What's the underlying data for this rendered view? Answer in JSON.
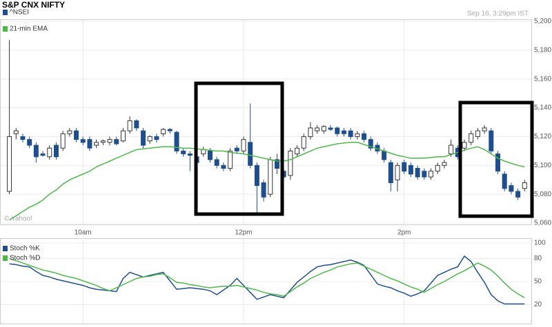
{
  "chart_data": [
    {
      "type": "candlestick",
      "title": "S&P CNX NIFTY",
      "timestamp": "Sep 16, 3:29pm IST",
      "source": "© Yahoo!",
      "xlim": [
        -1.4,
        78
      ],
      "xticks": [
        {
          "value": 11,
          "label": "10am"
        },
        {
          "value": 35,
          "label": "12pm"
        },
        {
          "value": 59,
          "label": "2pm"
        }
      ],
      "ylim": [
        5060,
        5200
      ],
      "yticks": [
        {
          "value": 5060,
          "label": "5,060"
        },
        {
          "value": 5080,
          "label": "5,080"
        },
        {
          "value": 5100,
          "label": "5,100"
        },
        {
          "value": 5120,
          "label": "5,120"
        },
        {
          "value": 5140,
          "label": "5,140"
        },
        {
          "value": 5160,
          "label": "5,160"
        },
        {
          "value": 5180,
          "label": "5,180"
        },
        {
          "value": 5200,
          "label": "5,200"
        }
      ],
      "grid": true,
      "series": [
        {
          "name": "^NSEI",
          "color": "#1f4e8c",
          "open": [
            5082,
            5122,
            5120,
            5118,
            5114,
            5108,
            5106,
            5114,
            5112,
            5122,
            5124,
            5118,
            5118,
            5114,
            5116,
            5116,
            5118,
            5117,
            5124,
            5131,
            5124,
            5117,
            5120,
            5122,
            5125,
            5123,
            5110,
            5108,
            5106,
            5108,
            5110,
            5104,
            5100,
            5098,
            5112,
            5110,
            5116,
            5100,
            5088,
            5080,
            5104,
            5096,
            5093,
            5108,
            5112,
            5120,
            5124,
            5124,
            5126,
            5126,
            5124,
            5124,
            5120,
            5122,
            5118,
            5114,
            5110,
            5102,
            5090,
            5102,
            5100,
            5098,
            5096,
            5092,
            5096,
            5100,
            5108,
            5112,
            5112,
            5116,
            5120,
            5124,
            5124,
            5108,
            5094,
            5086,
            5082,
            5084
          ],
          "high": [
            5187,
            5126,
            5122,
            5120,
            5116,
            5110,
            5114,
            5116,
            5124,
            5126,
            5126,
            5120,
            5120,
            5118,
            5118,
            5120,
            5120,
            5126,
            5134,
            5132,
            5126,
            5121,
            5122,
            5126,
            5126,
            5124,
            5112,
            5110,
            5108,
            5113,
            5112,
            5106,
            5102,
            5112,
            5114,
            5120,
            5143,
            5102,
            5090,
            5106,
            5108,
            5098,
            5112,
            5114,
            5122,
            5130,
            5128,
            5128,
            5128,
            5127,
            5126,
            5126,
            5124,
            5124,
            5120,
            5116,
            5112,
            5104,
            5102,
            5104,
            5102,
            5100,
            5098,
            5098,
            5102,
            5104,
            5118,
            5114,
            5118,
            5124,
            5126,
            5128,
            5126,
            5110,
            5096,
            5088,
            5084,
            5090
          ],
          "low": [
            5080,
            5118,
            5116,
            5112,
            5102,
            5106,
            5104,
            5104,
            5110,
            5120,
            5116,
            5114,
            5110,
            5112,
            5114,
            5114,
            5114,
            5116,
            5122,
            5124,
            5112,
            5115,
            5116,
            5120,
            5122,
            5108,
            5106,
            5096,
            5100,
            5106,
            5102,
            5098,
            5096,
            5096,
            5108,
            5108,
            5098,
            5067,
            5075,
            5078,
            5094,
            5090,
            5090,
            5106,
            5110,
            5118,
            5122,
            5122,
            5124,
            5120,
            5120,
            5118,
            5118,
            5116,
            5110,
            5108,
            5102,
            5082,
            5082,
            5094,
            5092,
            5090,
            5090,
            5090,
            5094,
            5098,
            5106,
            5104,
            5110,
            5114,
            5118,
            5122,
            5108,
            5094,
            5082,
            5080,
            5076,
            5082
          ],
          "close": [
            5120,
            5124,
            5118,
            5114,
            5106,
            5107,
            5112,
            5106,
            5122,
            5124,
            5118,
            5116,
            5112,
            5116,
            5117,
            5118,
            5115,
            5124,
            5131,
            5126,
            5114,
            5120,
            5118,
            5125,
            5124,
            5110,
            5108,
            5107,
            5102,
            5111,
            5104,
            5100,
            5098,
            5110,
            5110,
            5118,
            5100,
            5086,
            5078,
            5104,
            5098,
            5092,
            5110,
            5112,
            5120,
            5126,
            5126,
            5127,
            5125,
            5122,
            5122,
            5120,
            5122,
            5118,
            5112,
            5110,
            5104,
            5088,
            5100,
            5096,
            5094,
            5092,
            5092,
            5096,
            5100,
            5102,
            5114,
            5106,
            5116,
            5122,
            5124,
            5126,
            5110,
            5096,
            5084,
            5082,
            5078,
            5088
          ]
        },
        {
          "name": "21-min EMA",
          "type": "line",
          "color": "#4cb848",
          "values": [
            5062,
            5065,
            5068,
            5071,
            5073,
            5076,
            5080,
            5083,
            5087,
            5090,
            5092,
            5094,
            5096,
            5099,
            5101,
            5103,
            5105,
            5107,
            5109,
            5111,
            5111.5,
            5112,
            5112.5,
            5113,
            5113,
            5112.5,
            5112,
            5112,
            5111.5,
            5111,
            5110.5,
            5110,
            5110,
            5109,
            5108.5,
            5108,
            5107,
            5106,
            5105,
            5104,
            5103,
            5103,
            5104,
            5106,
            5108,
            5110,
            5112,
            5113,
            5114,
            5115,
            5115.5,
            5116,
            5116,
            5114.5,
            5113,
            5111.5,
            5110,
            5108.5,
            5107,
            5106,
            5105,
            5105,
            5105,
            5105.5,
            5106,
            5106,
            5107.5,
            5109,
            5110.5,
            5112,
            5113,
            5111,
            5108,
            5105,
            5103,
            5101.5,
            5100,
            5099
          ]
        }
      ]
    },
    {
      "type": "line",
      "xlim": [
        -1.4,
        78
      ],
      "ylim": [
        0,
        100
      ],
      "yticks": [
        20,
        50,
        80,
        100
      ],
      "grid": true,
      "series": [
        {
          "name": "Stoch %K",
          "color": "#1f4e8c",
          "values": [
            73,
            72,
            70,
            69,
            63,
            58,
            56,
            53,
            51,
            49,
            47,
            45,
            42,
            40,
            39,
            38,
            37,
            54,
            62,
            59,
            56,
            58,
            60,
            62,
            51,
            40,
            41,
            42,
            41,
            40,
            38,
            33,
            39,
            45,
            54,
            45,
            36,
            27,
            30,
            33,
            31,
            29,
            39,
            49,
            56,
            63,
            69,
            71,
            72,
            74,
            76,
            78,
            75,
            71,
            59,
            47,
            44,
            42,
            38,
            35,
            31,
            34,
            38,
            48,
            58,
            62,
            66,
            69,
            83,
            76,
            62,
            49,
            33,
            25,
            21,
            21,
            21,
            21
          ]
        },
        {
          "name": "Stoch %D",
          "color": "#4cb848",
          "values": [
            80,
            77,
            74,
            71,
            68,
            65,
            63,
            61,
            58,
            56,
            54,
            51,
            48,
            45,
            41,
            38,
            42,
            46,
            50,
            54,
            56,
            57,
            59,
            60,
            55,
            49,
            48,
            46,
            45,
            43,
            42,
            43,
            44,
            44,
            45,
            43,
            41,
            39,
            36,
            34,
            33,
            31,
            37,
            43,
            48,
            54,
            58,
            62,
            65,
            69,
            71,
            73,
            74,
            70,
            66,
            62,
            58,
            54,
            51,
            47,
            43,
            40,
            36,
            41,
            46,
            50,
            55,
            60,
            64,
            69,
            74,
            70,
            65,
            57,
            48,
            40,
            34,
            29
          ]
        }
      ]
    }
  ]
}
